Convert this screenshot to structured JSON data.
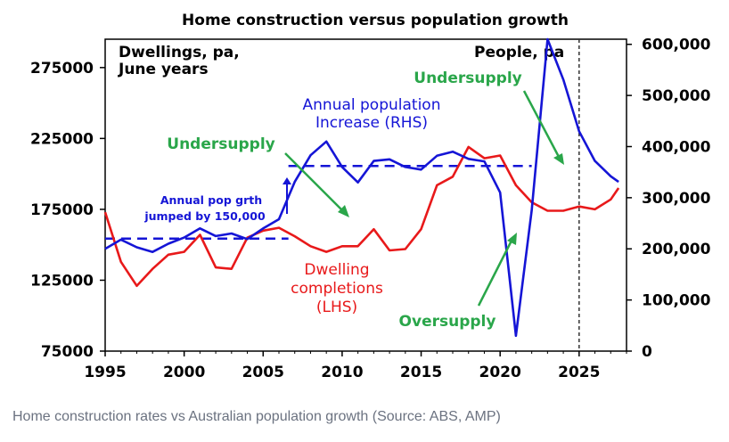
{
  "caption": "Home construction rates vs Australian population growth (Source: ABS, AMP)",
  "chart_data": {
    "type": "line",
    "title": "Home construction versus population growth",
    "x_ticks": [
      1995,
      2000,
      2005,
      2010,
      2015,
      2020,
      2025
    ],
    "xlim": [
      1995,
      2028
    ],
    "y_left": {
      "label_line1": "Dwellings, pa,",
      "label_line2": "June years",
      "ticks": [
        75000,
        125000,
        175000,
        225000,
        275000
      ],
      "tick_labels": [
        "75000",
        "125000",
        "175000",
        "225000",
        "275000"
      ],
      "lim": [
        75000,
        295000
      ]
    },
    "y_right": {
      "label": "People, pa",
      "ticks": [
        0,
        100000,
        200000,
        300000,
        400000,
        500000,
        600000
      ],
      "tick_labels": [
        "0",
        "100,000",
        "200,000",
        "300,000",
        "400,000",
        "500,000",
        "600,000"
      ],
      "lim": [
        0,
        610000
      ]
    },
    "series": [
      {
        "name": "Dwelling completions (LHS)",
        "axis": "left",
        "color": "#e8191a",
        "x": [
          1995,
          1996,
          1997,
          1998,
          1999,
          2000,
          2001,
          2002,
          2003,
          2004,
          2005,
          2006,
          2007,
          2008,
          2009,
          2010,
          2011,
          2012,
          2013,
          2014,
          2015,
          2016,
          2017,
          2018,
          2019,
          2020,
          2021,
          2022,
          2023,
          2024,
          2025,
          2026,
          2027,
          2027.5
        ],
        "y": [
          173000,
          138000,
          121000,
          133000,
          143000,
          145000,
          157000,
          134000,
          133000,
          155000,
          160000,
          162000,
          156000,
          149000,
          145000,
          149000,
          149000,
          161000,
          146000,
          147000,
          161000,
          192000,
          198000,
          219000,
          211000,
          213000,
          192000,
          180000,
          174000,
          174000,
          177000,
          175000,
          182000,
          190000
        ]
      },
      {
        "name": "Annual population Increase (RHS)",
        "axis": "right",
        "color": "#1515d6",
        "x": [
          1995,
          1996,
          1997,
          1998,
          1999,
          2000,
          2001,
          2002,
          2003,
          2004,
          2005,
          2006,
          2007,
          2008,
          2009,
          2010,
          2011,
          2012,
          2013,
          2014,
          2015,
          2016,
          2017,
          2018,
          2019,
          2020,
          2021,
          2022,
          2023,
          2024,
          2025,
          2026,
          2027,
          2027.5
        ],
        "y": [
          200000,
          218000,
          203000,
          194000,
          210000,
          222000,
          240000,
          225000,
          230000,
          219000,
          240000,
          258000,
          331000,
          383000,
          410000,
          360000,
          330000,
          372000,
          375000,
          360000,
          355000,
          382000,
          390000,
          376000,
          371000,
          310000,
          30000,
          275000,
          610000,
          531000,
          430000,
          372000,
          342000,
          331000
        ]
      }
    ],
    "reference_lines": [
      {
        "style": "dashed",
        "axis": "right",
        "y": 220000,
        "x": [
          1995,
          2006.6
        ]
      },
      {
        "style": "dashed",
        "axis": "right",
        "y": 362000,
        "x": [
          2006.6,
          2022
        ]
      }
    ],
    "vertical_line": {
      "x": 2025,
      "style": "dashed",
      "color": "#333333"
    },
    "annotations": {
      "pop_series_line1": "Annual population",
      "pop_series_line2": "Increase (RHS)",
      "dw_series_line1": "Dwelling",
      "dw_series_line2": "completions",
      "dw_series_line3": "(LHS)",
      "undersupply_left": "Undersupply",
      "undersupply_right": "Undersupply",
      "oversupply": "Oversupply",
      "pop_jump_line1": "Annual pop grth",
      "pop_jump_line2": "jumped by 150,000"
    },
    "colors": {
      "dwellings": "#e8191a",
      "population": "#1515d6",
      "annotation_green": "#2aa64a",
      "axis": "#000000"
    },
    "grid": false
  }
}
